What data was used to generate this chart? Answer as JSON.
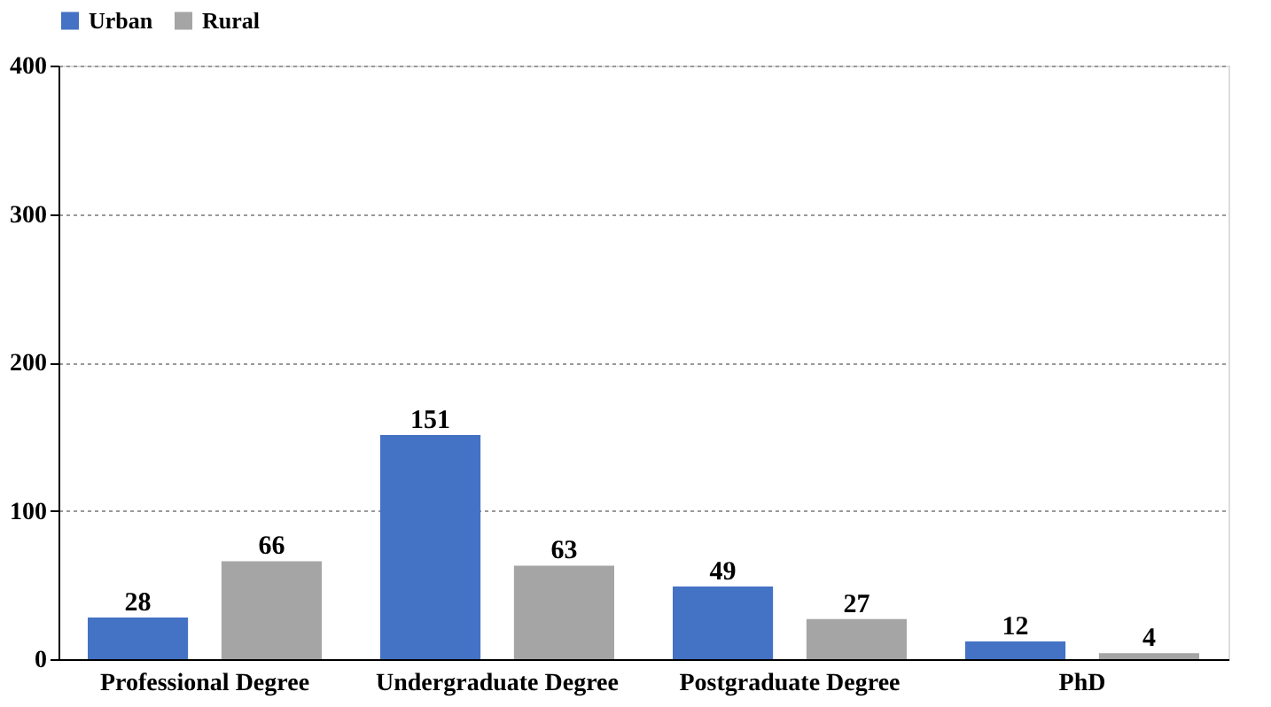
{
  "chart_data": {
    "type": "bar",
    "categories": [
      "Professional Degree",
      "Undergraduate Degree",
      "Postgraduate Degree",
      "PhD"
    ],
    "series": [
      {
        "name": "Urban",
        "color": "#4472c4",
        "values": [
          28,
          151,
          49,
          12
        ]
      },
      {
        "name": "Rural",
        "color": "#a5a5a5",
        "values": [
          66,
          63,
          27,
          4
        ]
      }
    ],
    "ylim": [
      0,
      400
    ],
    "yticks": [
      0,
      100,
      200,
      300,
      400
    ],
    "grid": "y",
    "legend": "top",
    "data_labels": true
  }
}
